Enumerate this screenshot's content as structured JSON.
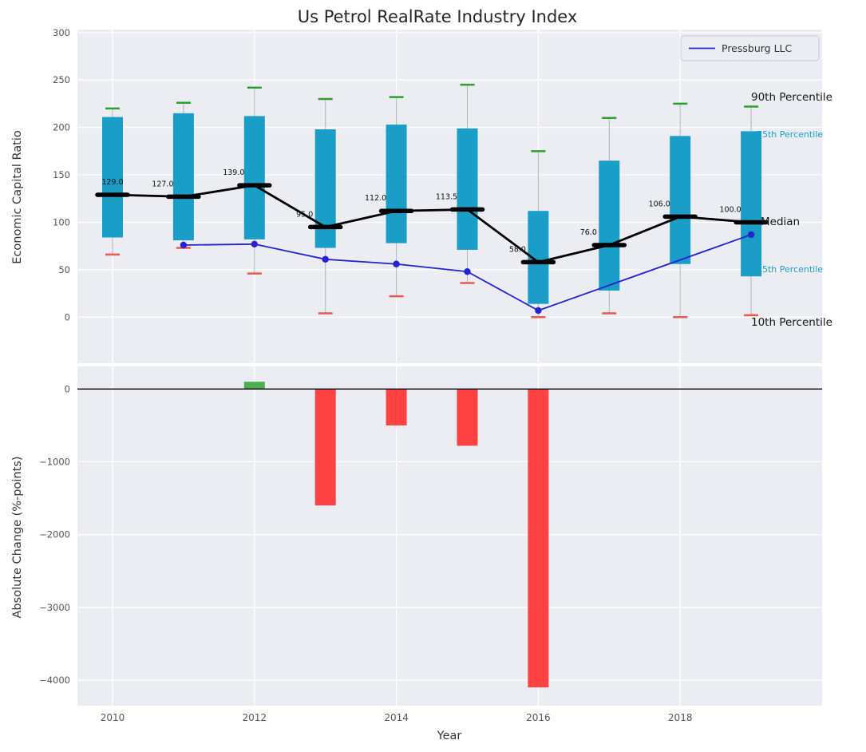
{
  "figure": {
    "title": "Us Petrol RealRate Industry Index",
    "legend": {
      "label": "Pressburg LLC"
    },
    "annotations": {
      "p90": "90th Percentile",
      "p75": "75th Percentile",
      "median": "Median",
      "p25": "25th Percentile",
      "p10": "10th Percentile"
    },
    "colors": {
      "box": "#1a9dc7",
      "p90_cap": "#2ca02c",
      "p10_cap": "#e85a50",
      "median_line": "#000000",
      "company_line": "#2323d6",
      "bar_negative": "#ff4242",
      "bar_positive": "#4caf50",
      "plot_bg": "#ebedf2",
      "grid": "#ffffff",
      "whisker": "#b3b3b3",
      "tick_text": "#555555",
      "teal_label": "#1a9dc7"
    }
  },
  "chart_data": [
    {
      "type": "percentile-band",
      "title": "Us Petrol RealRate Industry Index",
      "ylabel": "Economic Capital Ratio",
      "ylim": [
        -50,
        305
      ],
      "yticks": [
        0,
        50,
        100,
        150,
        200,
        250,
        300
      ],
      "ytick_labels": [
        "0",
        "50",
        "100",
        "150",
        "200",
        "250",
        "300"
      ],
      "xticks": [
        2010,
        2012,
        2014,
        2016,
        2018
      ],
      "years": [
        2010,
        2011,
        2012,
        2013,
        2014,
        2015,
        2016,
        2017,
        2018,
        2019
      ],
      "p90": [
        220,
        226,
        242,
        230,
        232,
        245,
        175,
        210,
        225,
        222
      ],
      "p75": [
        211,
        215,
        212,
        198,
        203,
        199,
        112,
        165,
        191,
        196
      ],
      "median": [
        129,
        127,
        139,
        95,
        112,
        113.5,
        58,
        76,
        106,
        100
      ],
      "median_labels": [
        "129.0",
        "127.0",
        "139.0",
        "95.0",
        "112.0",
        "113.5",
        "58.0",
        "76.0",
        "106.0",
        "100.0"
      ],
      "p25": [
        84,
        81,
        82,
        73,
        78,
        71,
        14,
        28,
        56,
        43
      ],
      "p10": [
        66,
        73,
        46,
        4,
        22,
        36,
        0,
        4,
        0,
        2
      ],
      "company_series": {
        "name": "Pressburg LLC",
        "years": [
          2011,
          2012,
          2013,
          2014,
          2015,
          2016,
          2019
        ],
        "values": [
          76,
          77,
          61,
          56,
          48,
          7,
          87
        ]
      },
      "legend_position": "upper right",
      "grid": true
    },
    {
      "type": "bar",
      "ylabel": "Absolute Change (%-points)",
      "xlabel": "Year",
      "ylim": [
        -4400,
        250
      ],
      "yticks": [
        0,
        -1000,
        -2000,
        -3000,
        -4000
      ],
      "ytick_labels": [
        "0",
        "−1000",
        "−2000",
        "−3000",
        "−4000"
      ],
      "xticks": [
        2010,
        2012,
        2014,
        2016,
        2018
      ],
      "xtick_labels": [
        "2010",
        "2012",
        "2014",
        "2016",
        "2018"
      ],
      "categories": [
        2010,
        2011,
        2012,
        2013,
        2014,
        2015,
        2016,
        2017,
        2018,
        2019
      ],
      "values": [
        0,
        0,
        100,
        -1600,
        -500,
        -780,
        -4100,
        0,
        0,
        0
      ],
      "grid": true
    }
  ]
}
